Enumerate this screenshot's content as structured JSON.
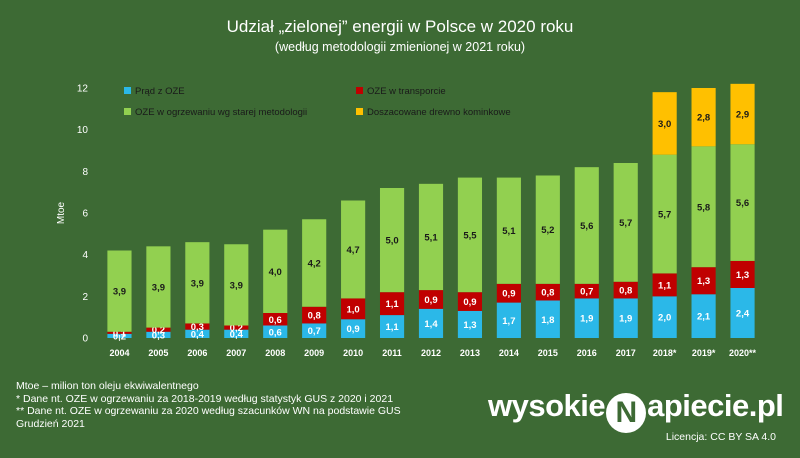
{
  "chart_data": {
    "type": "bar",
    "stacked": true,
    "title": "Udział „zielonej” energii w Polsce w 2020 roku",
    "subtitle": "(według metodologii zmienionej w 2021 roku)",
    "ylabel": "Mtoe",
    "ylim": [
      0,
      12
    ],
    "yticks": [
      0,
      2,
      4,
      6,
      8,
      10,
      12
    ],
    "grid": false,
    "categories": [
      "2004",
      "2005",
      "2006",
      "2007",
      "2008",
      "2009",
      "2010",
      "2011",
      "2012",
      "2013",
      "2014",
      "2015",
      "2016",
      "2017",
      "2018*",
      "2019*",
      "2020**"
    ],
    "series": [
      {
        "name": "Prąd z OZE",
        "color": "#2bb8e8",
        "label_color": "#ffffff",
        "values": [
          0.2,
          0.3,
          0.4,
          0.4,
          0.6,
          0.7,
          0.9,
          1.1,
          1.4,
          1.3,
          1.7,
          1.8,
          1.9,
          1.9,
          2.0,
          2.1,
          2.4
        ],
        "labels": [
          "0,2",
          "0,3",
          "0,4",
          "0,4",
          "0,6",
          "0,7",
          "0,9",
          "1,1",
          "1,4",
          "1,3",
          "1,7",
          "1,8",
          "1,9",
          "1,9",
          "2,0",
          "2,1",
          "2,4"
        ]
      },
      {
        "name": "OZE w transporcie",
        "color": "#c00000",
        "label_color": "#ffffff",
        "values": [
          0.1,
          0.2,
          0.3,
          0.2,
          0.6,
          0.8,
          1.0,
          1.1,
          0.9,
          0.9,
          0.9,
          0.8,
          0.7,
          0.8,
          1.1,
          1.3,
          1.3
        ],
        "labels": [
          "0,1",
          "0,2",
          "0,3",
          "0,2",
          "0,6",
          "0,8",
          "1,0",
          "1,1",
          "0,9",
          "0,9",
          "0,9",
          "0,8",
          "0,7",
          "0,8",
          "1,1",
          "1,3",
          "1,3"
        ]
      },
      {
        "name": "OZE w ogrzewaniu wg starej metodologii",
        "color": "#92d050",
        "label_color": "#1a1a1a",
        "values": [
          3.9,
          3.9,
          3.9,
          3.9,
          4.0,
          4.2,
          4.7,
          5.0,
          5.1,
          5.5,
          5.1,
          5.2,
          5.6,
          5.7,
          5.7,
          5.8,
          5.6
        ],
        "labels": [
          "3,9",
          "3,9",
          "3,9",
          "3,9",
          "4,0",
          "4,2",
          "4,7",
          "5,0",
          "5,1",
          "5,5",
          "5,1",
          "5,2",
          "5,6",
          "5,7",
          "5,7",
          "5,8",
          "5,6"
        ]
      },
      {
        "name": "Doszacowane drewno kominkowe",
        "color": "#ffc000",
        "label_color": "#1a1a1a",
        "values": [
          0,
          0,
          0,
          0,
          0,
          0,
          0,
          0,
          0,
          0,
          0,
          0,
          0,
          0,
          3.0,
          2.8,
          2.9
        ],
        "labels": [
          "",
          "",
          "",
          "",
          "",
          "",
          "",
          "",
          "",
          "",
          "",
          "",
          "",
          "",
          "3,0",
          "2,8",
          "2,9"
        ]
      }
    ],
    "legend": "top-left inside plot, two columns"
  },
  "footnotes": [
    "Mtoe – milion ton oleju ekwiwalentnego",
    "* Dane nt. OZE w ogrzewaniu za 2018-2019 według statystyk GUS z 2020 i 2021",
    "** Dane nt. OZE w ogrzewaniu za 2020 według szacunków WN na podstawie GUS",
    "Grudzień 2021"
  ],
  "brand": {
    "before": "wysokie",
    "logo_letter": "N",
    "after": "apiecie.pl"
  },
  "license": "Licencja: CC BY SA 4.0"
}
